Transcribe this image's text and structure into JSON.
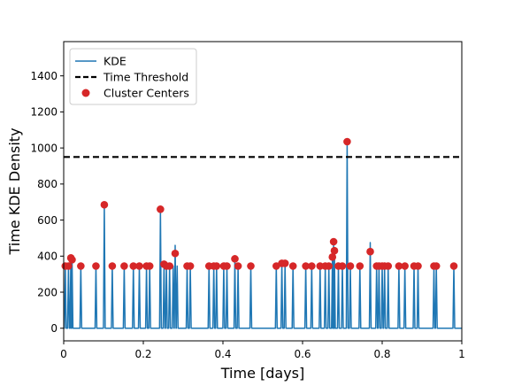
{
  "chart_data": {
    "type": "line",
    "xlabel": "Time [days]",
    "ylabel": "Time KDE Density",
    "xlim": [
      0,
      1
    ],
    "ylim": [
      -70,
      1590
    ],
    "xticks": [
      0,
      0.2,
      0.4,
      0.6,
      0.8,
      1
    ],
    "xtick_labels": [
      "0",
      "0.2",
      "0.4",
      "0.6",
      "0.8",
      "1"
    ],
    "yticks": [
      0,
      200,
      400,
      600,
      800,
      1000,
      1200,
      1400
    ],
    "ytick_labels": [
      "0",
      "200",
      "400",
      "600",
      "800",
      "1000",
      "1200",
      "1400"
    ],
    "grid": false,
    "legend_position": "top-left",
    "threshold": {
      "name": "Time Threshold",
      "value": 950,
      "color": "#000000",
      "style": "dashed"
    },
    "series": [
      {
        "name": "KDE",
        "type": "line",
        "color": "#1f77b4",
        "baseline": 0,
        "peaks": [
          {
            "x": 0.004,
            "y": 345
          },
          {
            "x": 0.012,
            "y": 345
          },
          {
            "x": 0.018,
            "y": 390
          },
          {
            "x": 0.021,
            "y": 380
          },
          {
            "x": 0.043,
            "y": 345
          },
          {
            "x": 0.081,
            "y": 345
          },
          {
            "x": 0.102,
            "y": 685
          },
          {
            "x": 0.122,
            "y": 345
          },
          {
            "x": 0.152,
            "y": 345
          },
          {
            "x": 0.175,
            "y": 345
          },
          {
            "x": 0.19,
            "y": 345
          },
          {
            "x": 0.208,
            "y": 345
          },
          {
            "x": 0.216,
            "y": 345
          },
          {
            "x": 0.243,
            "y": 660
          },
          {
            "x": 0.252,
            "y": 355
          },
          {
            "x": 0.258,
            "y": 345
          },
          {
            "x": 0.266,
            "y": 345
          },
          {
            "x": 0.275,
            "y": 345
          },
          {
            "x": 0.28,
            "y": 460
          },
          {
            "x": 0.285,
            "y": 345
          },
          {
            "x": 0.31,
            "y": 345
          },
          {
            "x": 0.318,
            "y": 345
          },
          {
            "x": 0.365,
            "y": 345
          },
          {
            "x": 0.377,
            "y": 345
          },
          {
            "x": 0.384,
            "y": 345
          },
          {
            "x": 0.402,
            "y": 345
          },
          {
            "x": 0.41,
            "y": 345
          },
          {
            "x": 0.43,
            "y": 385
          },
          {
            "x": 0.438,
            "y": 345
          },
          {
            "x": 0.47,
            "y": 345
          },
          {
            "x": 0.534,
            "y": 345
          },
          {
            "x": 0.548,
            "y": 360
          },
          {
            "x": 0.556,
            "y": 360
          },
          {
            "x": 0.576,
            "y": 345
          },
          {
            "x": 0.608,
            "y": 345
          },
          {
            "x": 0.623,
            "y": 345
          },
          {
            "x": 0.644,
            "y": 345
          },
          {
            "x": 0.657,
            "y": 345
          },
          {
            "x": 0.666,
            "y": 345
          },
          {
            "x": 0.675,
            "y": 395
          },
          {
            "x": 0.678,
            "y": 480
          },
          {
            "x": 0.68,
            "y": 430
          },
          {
            "x": 0.69,
            "y": 345
          },
          {
            "x": 0.7,
            "y": 345
          },
          {
            "x": 0.712,
            "y": 1045
          },
          {
            "x": 0.72,
            "y": 345
          },
          {
            "x": 0.744,
            "y": 345
          },
          {
            "x": 0.77,
            "y": 475
          },
          {
            "x": 0.786,
            "y": 345
          },
          {
            "x": 0.792,
            "y": 345
          },
          {
            "x": 0.8,
            "y": 345
          },
          {
            "x": 0.806,
            "y": 345
          },
          {
            "x": 0.815,
            "y": 345
          },
          {
            "x": 0.842,
            "y": 345
          },
          {
            "x": 0.857,
            "y": 345
          },
          {
            "x": 0.88,
            "y": 345
          },
          {
            "x": 0.89,
            "y": 345
          },
          {
            "x": 0.93,
            "y": 345
          },
          {
            "x": 0.936,
            "y": 345
          },
          {
            "x": 0.98,
            "y": 345
          }
        ]
      },
      {
        "name": "Cluster Centers",
        "type": "scatter",
        "color": "#d62728",
        "points": [
          {
            "x": 0.004,
            "y": 345
          },
          {
            "x": 0.012,
            "y": 345
          },
          {
            "x": 0.018,
            "y": 390
          },
          {
            "x": 0.021,
            "y": 380
          },
          {
            "x": 0.043,
            "y": 345
          },
          {
            "x": 0.081,
            "y": 345
          },
          {
            "x": 0.102,
            "y": 685
          },
          {
            "x": 0.122,
            "y": 345
          },
          {
            "x": 0.152,
            "y": 345
          },
          {
            "x": 0.175,
            "y": 345
          },
          {
            "x": 0.19,
            "y": 345
          },
          {
            "x": 0.208,
            "y": 345
          },
          {
            "x": 0.216,
            "y": 345
          },
          {
            "x": 0.243,
            "y": 660
          },
          {
            "x": 0.252,
            "y": 355
          },
          {
            "x": 0.258,
            "y": 345
          },
          {
            "x": 0.266,
            "y": 345
          },
          {
            "x": 0.28,
            "y": 415
          },
          {
            "x": 0.31,
            "y": 345
          },
          {
            "x": 0.318,
            "y": 345
          },
          {
            "x": 0.365,
            "y": 345
          },
          {
            "x": 0.377,
            "y": 345
          },
          {
            "x": 0.384,
            "y": 345
          },
          {
            "x": 0.402,
            "y": 345
          },
          {
            "x": 0.41,
            "y": 345
          },
          {
            "x": 0.43,
            "y": 385
          },
          {
            "x": 0.438,
            "y": 345
          },
          {
            "x": 0.47,
            "y": 345
          },
          {
            "x": 0.534,
            "y": 345
          },
          {
            "x": 0.548,
            "y": 360
          },
          {
            "x": 0.556,
            "y": 360
          },
          {
            "x": 0.576,
            "y": 345
          },
          {
            "x": 0.608,
            "y": 345
          },
          {
            "x": 0.623,
            "y": 345
          },
          {
            "x": 0.644,
            "y": 345
          },
          {
            "x": 0.657,
            "y": 345
          },
          {
            "x": 0.666,
            "y": 345
          },
          {
            "x": 0.675,
            "y": 395
          },
          {
            "x": 0.678,
            "y": 480
          },
          {
            "x": 0.68,
            "y": 430
          },
          {
            "x": 0.69,
            "y": 345
          },
          {
            "x": 0.7,
            "y": 345
          },
          {
            "x": 0.712,
            "y": 1035
          },
          {
            "x": 0.72,
            "y": 345
          },
          {
            "x": 0.744,
            "y": 345
          },
          {
            "x": 0.77,
            "y": 425
          },
          {
            "x": 0.786,
            "y": 345
          },
          {
            "x": 0.792,
            "y": 345
          },
          {
            "x": 0.8,
            "y": 345
          },
          {
            "x": 0.806,
            "y": 345
          },
          {
            "x": 0.815,
            "y": 345
          },
          {
            "x": 0.842,
            "y": 345
          },
          {
            "x": 0.857,
            "y": 345
          },
          {
            "x": 0.88,
            "y": 345
          },
          {
            "x": 0.89,
            "y": 345
          },
          {
            "x": 0.93,
            "y": 345
          },
          {
            "x": 0.936,
            "y": 345
          },
          {
            "x": 0.98,
            "y": 345
          }
        ]
      }
    ],
    "legend": [
      {
        "label": "KDE",
        "symbol": "line",
        "color": "#1f77b4"
      },
      {
        "label": "Time Threshold",
        "symbol": "dashed-line",
        "color": "#000000"
      },
      {
        "label": "Cluster Centers",
        "symbol": "dot",
        "color": "#d62728"
      }
    ]
  }
}
